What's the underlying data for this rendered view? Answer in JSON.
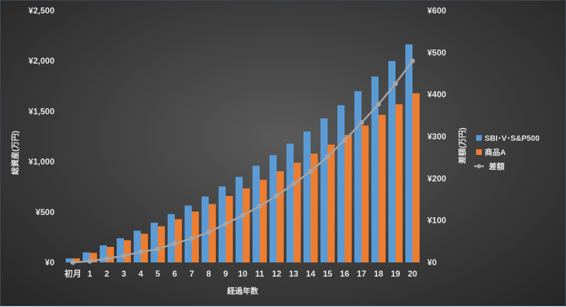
{
  "colors": {
    "series_sbi": "#5b9bd5",
    "series_a": "#ed7d31",
    "series_diff": "#a5a5a5",
    "text": "#e6e6e6"
  },
  "chart_data": {
    "type": "bar",
    "title": "",
    "xlabel": "経過年数",
    "ylabel": "総資産(万円)",
    "y2label": "差額(万円)",
    "ylim": [
      0,
      2500
    ],
    "y2lim": [
      0,
      600
    ],
    "yticks": [
      "¥0",
      "¥500",
      "¥1,000",
      "¥1,500",
      "¥2,000",
      "¥2,500"
    ],
    "y2ticks": [
      "¥0",
      "¥100",
      "¥200",
      "¥300",
      "¥400",
      "¥500",
      "¥600"
    ],
    "categories": [
      "初月",
      "1",
      "2",
      "3",
      "4",
      "5",
      "6",
      "7",
      "8",
      "9",
      "10",
      "11",
      "12",
      "13",
      "14",
      "15",
      "16",
      "17",
      "18",
      "19",
      "20"
    ],
    "legend_position": "right",
    "grid": false,
    "series": [
      {
        "name": "SBI･V･S&P500",
        "type": "bar",
        "axis": "left",
        "values": [
          40,
          100,
          170,
          240,
          315,
          395,
          480,
          565,
          655,
          755,
          850,
          960,
          1065,
          1180,
          1300,
          1430,
          1560,
          1700,
          1845,
          2000,
          2165
        ]
      },
      {
        "name": "商品A",
        "type": "bar",
        "axis": "left",
        "values": [
          40,
          95,
          155,
          220,
          285,
          360,
          430,
          505,
          580,
          660,
          735,
          820,
          905,
          990,
          1080,
          1170,
          1265,
          1360,
          1465,
          1570,
          1680
        ]
      },
      {
        "name": "差額",
        "type": "line",
        "axis": "right",
        "values": [
          0,
          3,
          9,
          16,
          25,
          32,
          45,
          57,
          72,
          92,
          112,
          134,
          159,
          187,
          217,
          252,
          291,
          333,
          377,
          426,
          480
        ]
      }
    ]
  }
}
